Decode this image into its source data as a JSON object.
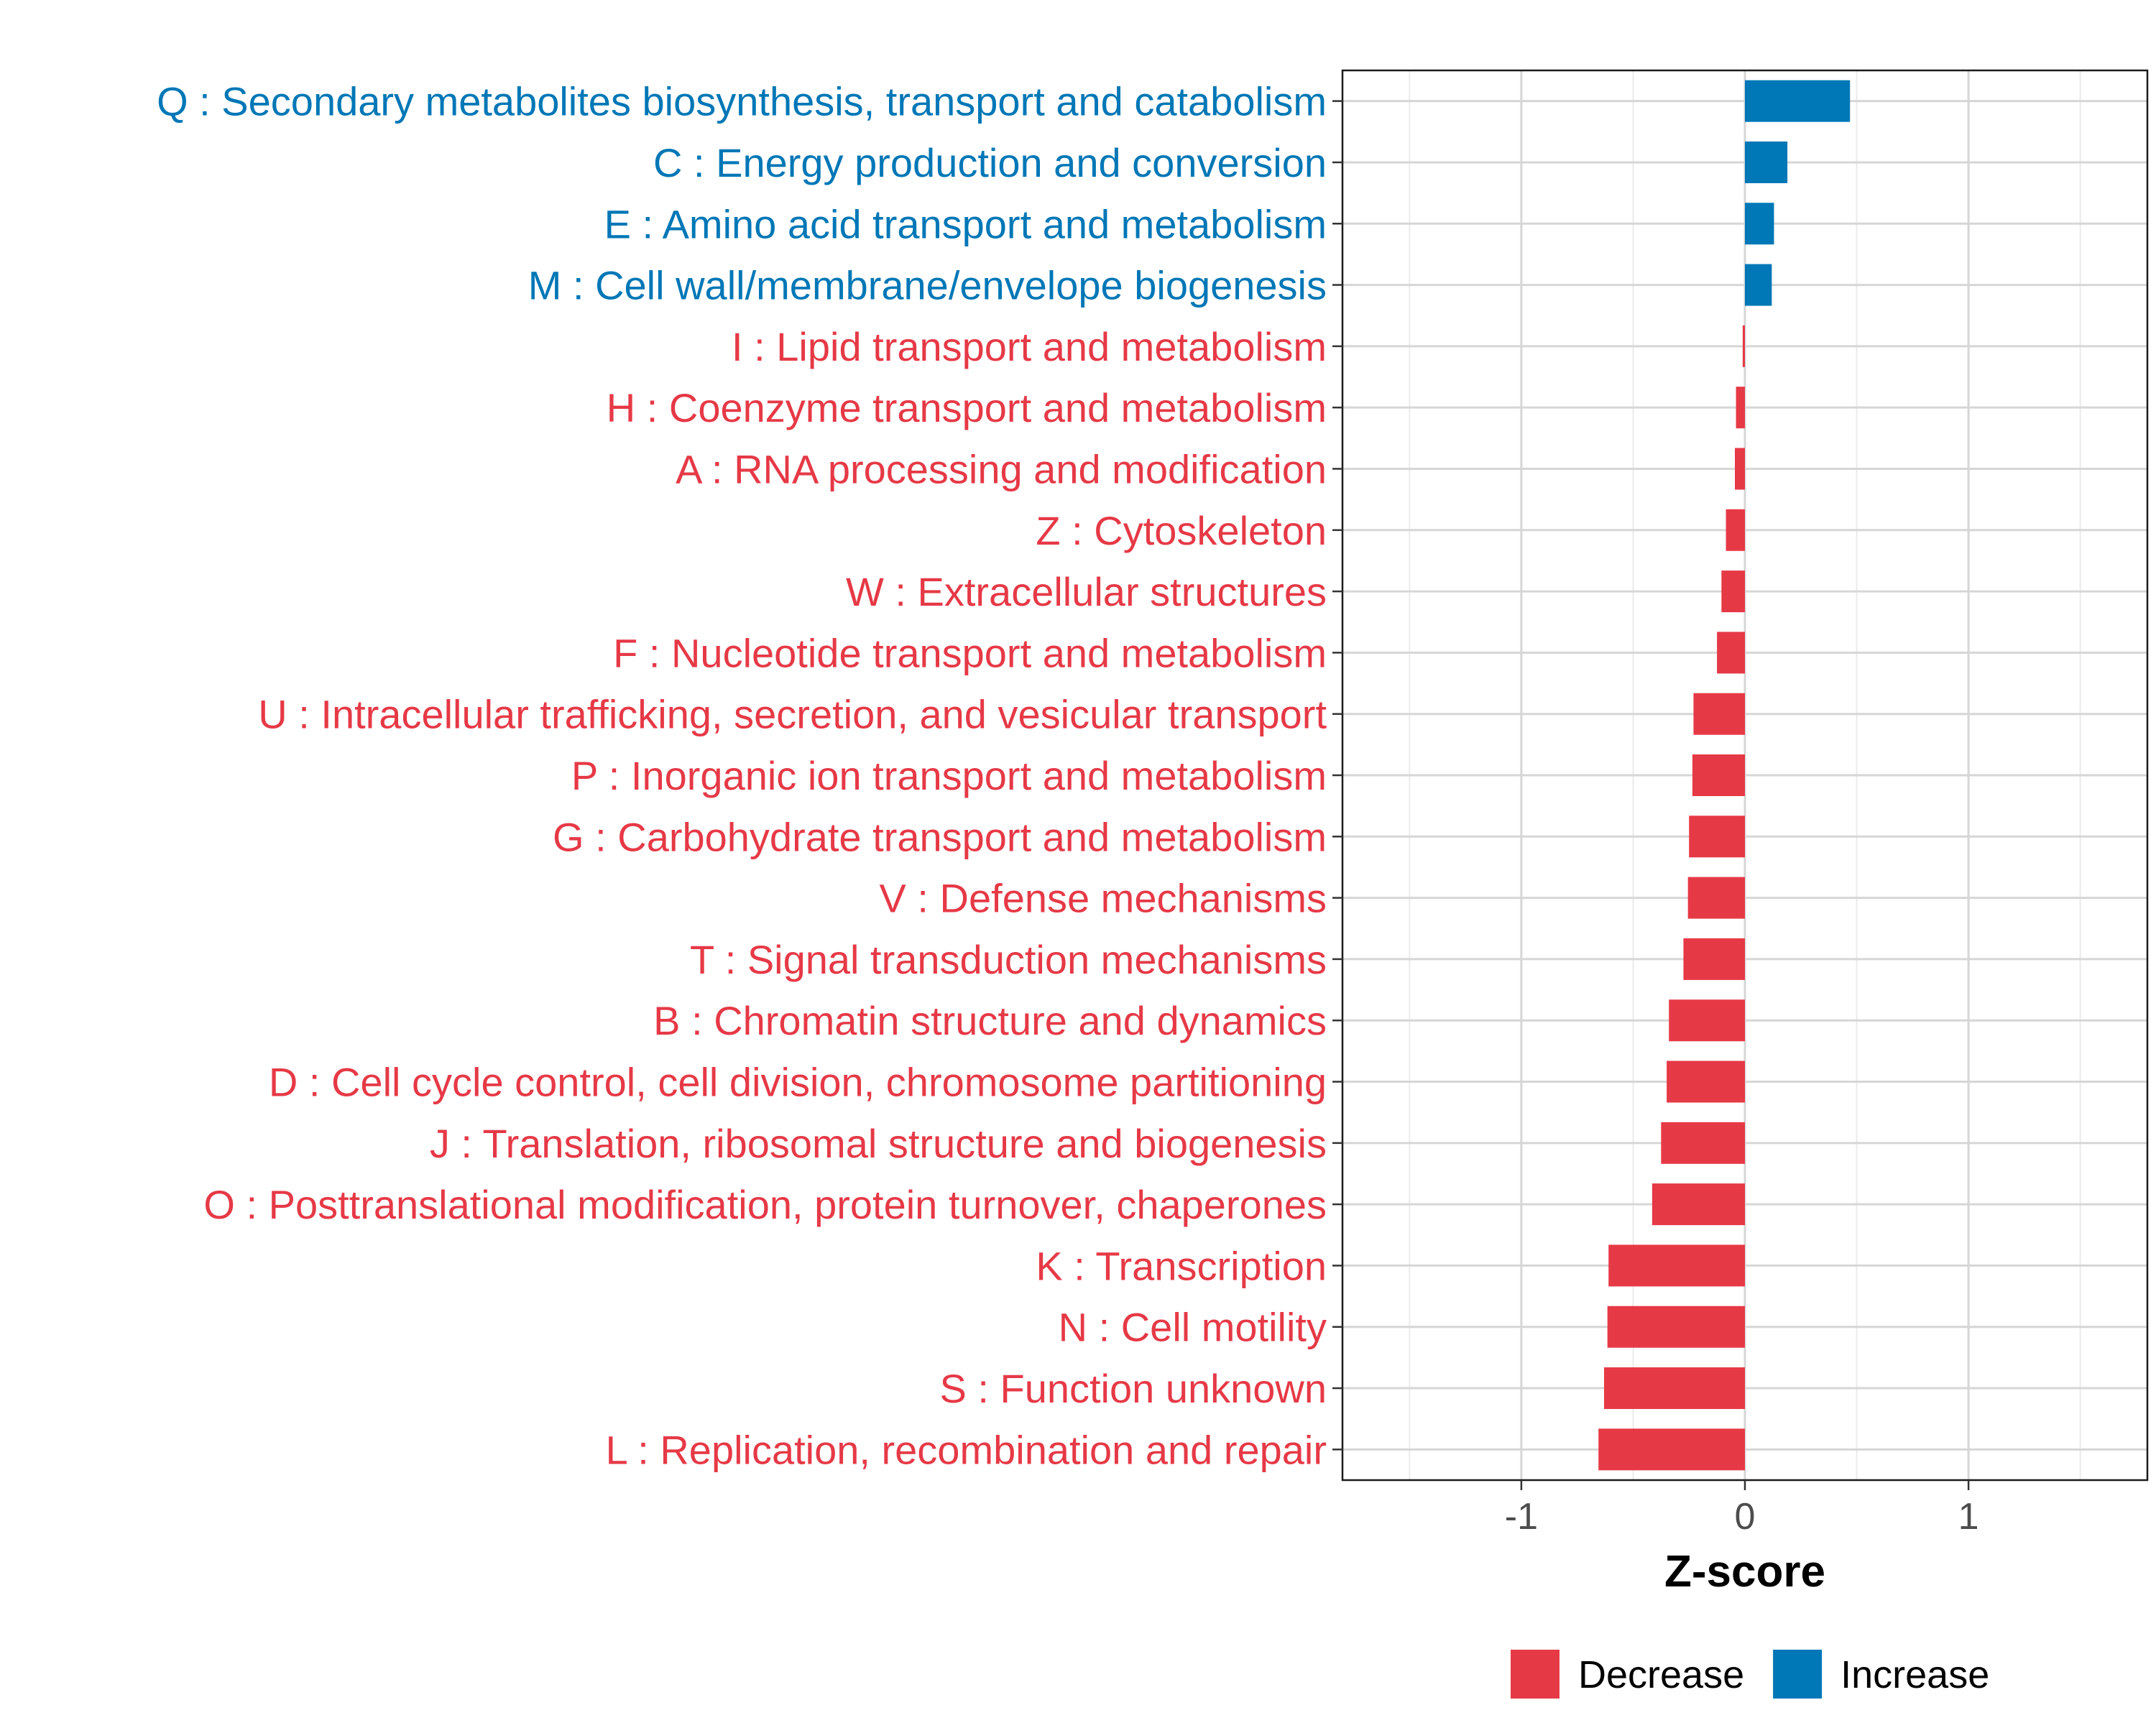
{
  "chart_data": {
    "type": "bar",
    "orientation": "horizontal",
    "xlabel": "Z-score",
    "ylabel": "",
    "xlim": [
      -1.8,
      1.8
    ],
    "xticks": [
      -1,
      0,
      1
    ],
    "xtick_labels": [
      "-1",
      "0",
      "1"
    ],
    "grid": true,
    "legend": {
      "placement": "bottom",
      "entries": [
        {
          "label": "Decrease",
          "color": "#E63946"
        },
        {
          "label": "Increase",
          "color": "#0077B6"
        }
      ]
    },
    "categories": [
      {
        "label": "Q : Secondary metabolites biosynthesis, transport and catabolism",
        "value": 0.47,
        "direction": "Increase"
      },
      {
        "label": "C : Energy production and conversion",
        "value": 0.19,
        "direction": "Increase"
      },
      {
        "label": "E : Amino acid transport and metabolism",
        "value": 0.13,
        "direction": "Increase"
      },
      {
        "label": "M : Cell wall/membrane/envelope biogenesis",
        "value": 0.12,
        "direction": "Increase"
      },
      {
        "label": "I : Lipid transport and metabolism",
        "value": -0.01,
        "direction": "Decrease"
      },
      {
        "label": "H : Coenzyme transport and metabolism",
        "value": -0.04,
        "direction": "Decrease"
      },
      {
        "label": "A : RNA processing and modification",
        "value": -0.045,
        "direction": "Decrease"
      },
      {
        "label": "Z : Cytoskeleton",
        "value": -0.085,
        "direction": "Decrease"
      },
      {
        "label": "W : Extracellular structures",
        "value": -0.105,
        "direction": "Decrease"
      },
      {
        "label": "F : Nucleotide transport and metabolism",
        "value": -0.125,
        "direction": "Decrease"
      },
      {
        "label": "U : Intracellular trafficking, secretion, and vesicular transport",
        "value": -0.23,
        "direction": "Decrease"
      },
      {
        "label": "P : Inorganic ion transport and metabolism",
        "value": -0.235,
        "direction": "Decrease"
      },
      {
        "label": "G : Carbohydrate transport and metabolism",
        "value": -0.25,
        "direction": "Decrease"
      },
      {
        "label": "V : Defense mechanisms",
        "value": -0.255,
        "direction": "Decrease"
      },
      {
        "label": "T : Signal transduction mechanisms",
        "value": -0.275,
        "direction": "Decrease"
      },
      {
        "label": "B : Chromatin structure and dynamics",
        "value": -0.34,
        "direction": "Decrease"
      },
      {
        "label": "D : Cell cycle control, cell division, chromosome partitioning",
        "value": -0.35,
        "direction": "Decrease"
      },
      {
        "label": "J : Translation, ribosomal structure and biogenesis",
        "value": -0.375,
        "direction": "Decrease"
      },
      {
        "label": "O : Posttranslational modification, protein turnover, chaperones",
        "value": -0.415,
        "direction": "Decrease"
      },
      {
        "label": "K : Transcription",
        "value": -0.61,
        "direction": "Decrease"
      },
      {
        "label": "N : Cell motility",
        "value": -0.615,
        "direction": "Decrease"
      },
      {
        "label": "S : Function unknown",
        "value": -0.63,
        "direction": "Decrease"
      },
      {
        "label": "L : Replication, recombination and repair",
        "value": -0.655,
        "direction": "Decrease"
      }
    ]
  }
}
